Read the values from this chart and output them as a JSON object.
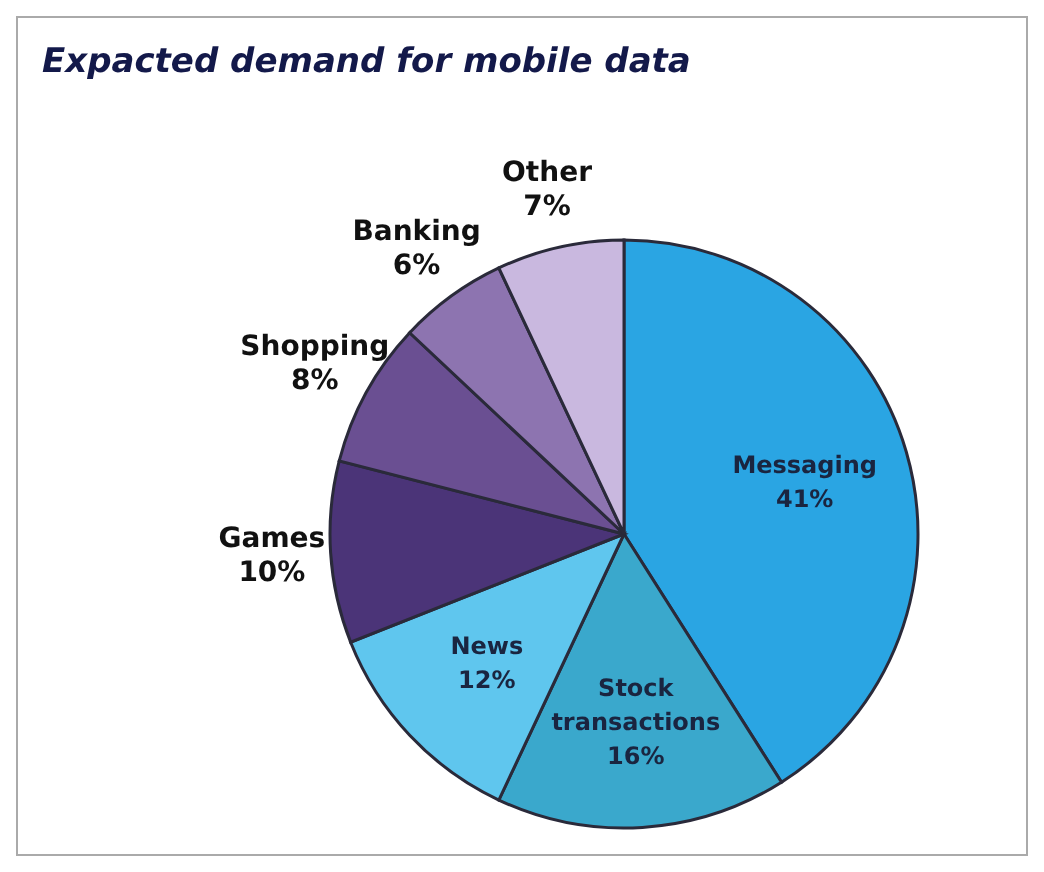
{
  "chart_data": {
    "type": "pie",
    "title": "Expacted demand for mobile data",
    "categories": [
      "Messaging",
      "Stock transactions",
      "News",
      "Games",
      "Shopping",
      "Banking",
      "Other"
    ],
    "values": [
      41,
      16,
      12,
      10,
      8,
      6,
      7
    ],
    "value_labels": [
      "41%",
      "16%",
      "12%",
      "10%",
      "8%",
      "6%",
      "7%"
    ],
    "colors": [
      "#2aa5e3",
      "#3aa8cc",
      "#5fc6ee",
      "#4b3478",
      "#6a4f92",
      "#8d74b0",
      "#c9b8df"
    ]
  }
}
